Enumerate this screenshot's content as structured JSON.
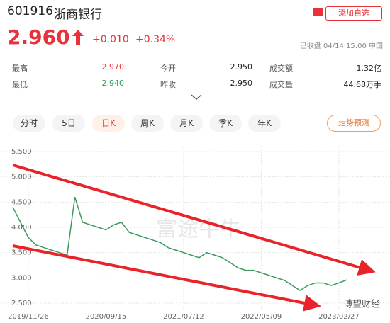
{
  "header": {
    "code": "601916",
    "name": "浙商银行",
    "watch": "添加自选",
    "price": "2.960",
    "change": "+0.010",
    "change_pct": "+0.34%",
    "status": "已收盘 04/14 15:00 中国"
  },
  "stats": [
    [
      "最高",
      "2.970",
      "今开",
      "2.950",
      "成交额",
      "1.32亿"
    ],
    [
      "最低",
      "2.940",
      "昨收",
      "2.950",
      "成交量",
      "44.68万手"
    ]
  ],
  "tabs": [
    "分时",
    "5日",
    "日K",
    "周K",
    "月K",
    "季K",
    "年K"
  ],
  "predict": "走势预测",
  "watermarks": [
    "富途牛牛",
    "博望财经"
  ],
  "chart_data": {
    "type": "line",
    "color": "#3a9a5c",
    "categories": [
      null,
      null,
      "2019/11/26",
      null,
      null,
      null,
      null,
      null,
      null,
      null,
      null,
      null,
      "2020/09/15",
      null,
      null,
      null,
      null,
      null,
      null,
      null,
      null,
      null,
      "2021/07/12",
      null,
      null,
      null,
      null,
      null,
      null,
      null,
      null,
      null,
      "2022/05/09",
      null,
      null,
      null,
      null,
      null,
      null,
      null,
      null,
      null,
      "2023/02/27",
      null
    ],
    "values": [
      4.4,
      4.1,
      3.8,
      3.65,
      3.6,
      3.55,
      3.5,
      3.45,
      4.6,
      4.1,
      4.05,
      4.0,
      3.95,
      4.05,
      4.1,
      3.9,
      3.85,
      3.8,
      3.75,
      3.7,
      3.6,
      3.55,
      3.5,
      3.45,
      3.4,
      3.5,
      3.45,
      3.4,
      3.3,
      3.2,
      3.15,
      3.15,
      3.1,
      3.05,
      3.0,
      2.95,
      2.85,
      2.75,
      2.85,
      2.9,
      2.9,
      2.85,
      2.9,
      2.96
    ],
    "ylim": [
      2.5,
      5.5
    ],
    "yticks": [
      {
        "value": 5.5,
        "label": "5.500"
      },
      {
        "value": 5.0,
        "label": "5.000"
      },
      {
        "value": 4.5,
        "label": "4.500"
      },
      {
        "value": 4.0,
        "label": "4.000"
      },
      {
        "value": 3.5,
        "label": "3.500"
      },
      {
        "value": 3.0,
        "label": "3.000"
      },
      {
        "value": 2.5,
        "label": "2.500"
      }
    ],
    "grid": true
  }
}
